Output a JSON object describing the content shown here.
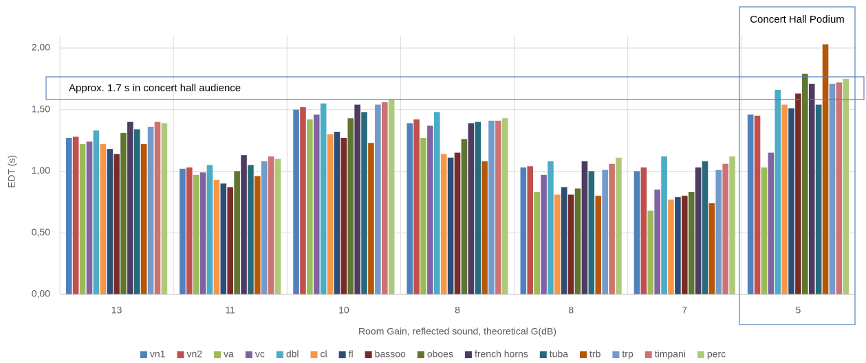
{
  "chart_data": {
    "type": "bar",
    "y_label": "EDT (s)",
    "x_label": "Room Gain, reflected sound, theoretical G(dB)",
    "annotations": [
      "Approx. 1.7 s in concert hall audience",
      "Concert Hall Podium"
    ],
    "categories": [
      "13",
      "11",
      "10",
      "8",
      "8",
      "7",
      "5"
    ],
    "ylim": [
      0,
      2.1
    ],
    "yticks": [
      {
        "value": 0,
        "label": "0,00"
      },
      {
        "value": 0.5,
        "label": "0,50"
      },
      {
        "value": 1,
        "label": "1,00"
      },
      {
        "value": 1.5,
        "label": "1,50"
      },
      {
        "value": 2,
        "label": "2,00"
      }
    ],
    "grid": true,
    "series": [
      {
        "name": "vn1",
        "color": "#4f81bd",
        "values": [
          1.27,
          1.02,
          1.5,
          1.39,
          1.03,
          1.0,
          1.46
        ]
      },
      {
        "name": "vn2",
        "color": "#c0504d",
        "values": [
          1.28,
          1.03,
          1.52,
          1.42,
          1.04,
          1.03,
          1.45
        ]
      },
      {
        "name": "va",
        "color": "#9bbb59",
        "values": [
          1.22,
          0.97,
          1.42,
          1.27,
          0.83,
          0.68,
          1.03
        ]
      },
      {
        "name": "vc",
        "color": "#8064a2",
        "values": [
          1.24,
          0.99,
          1.46,
          1.37,
          0.97,
          0.85,
          1.15
        ]
      },
      {
        "name": "dbl",
        "color": "#4bacc6",
        "values": [
          1.33,
          1.05,
          1.55,
          1.48,
          1.08,
          1.12,
          1.66
        ]
      },
      {
        "name": "cl",
        "color": "#f79646",
        "values": [
          1.22,
          0.93,
          1.3,
          1.14,
          0.81,
          0.77,
          1.54
        ]
      },
      {
        "name": "fl",
        "color": "#2c4d75",
        "values": [
          1.18,
          0.9,
          1.32,
          1.11,
          0.87,
          0.79,
          1.51
        ]
      },
      {
        "name": "bassoo",
        "color": "#772c2a",
        "values": [
          1.14,
          0.87,
          1.27,
          1.15,
          0.81,
          0.8,
          1.63
        ]
      },
      {
        "name": "oboes",
        "color": "#5f7530",
        "values": [
          1.31,
          1.0,
          1.43,
          1.26,
          0.86,
          0.83,
          1.79
        ]
      },
      {
        "name": "french horns",
        "color": "#4d3b62",
        "values": [
          1.4,
          1.13,
          1.54,
          1.39,
          1.08,
          1.03,
          1.71
        ]
      },
      {
        "name": "tuba",
        "color": "#276a7c",
        "values": [
          1.34,
          1.05,
          1.48,
          1.4,
          1.0,
          1.08,
          1.54
        ]
      },
      {
        "name": "trb",
        "color": "#b65708",
        "values": [
          1.22,
          0.96,
          1.23,
          1.08,
          0.8,
          0.74,
          2.03
        ]
      },
      {
        "name": "trp",
        "color": "#729aca",
        "values": [
          1.36,
          1.08,
          1.54,
          1.41,
          1.01,
          1.01,
          1.71
        ]
      },
      {
        "name": "timpani",
        "color": "#cd7371",
        "values": [
          1.4,
          1.12,
          1.56,
          1.41,
          1.06,
          1.06,
          1.72
        ]
      },
      {
        "name": "perc",
        "color": "#afc97a",
        "values": [
          1.39,
          1.1,
          1.58,
          1.43,
          1.11,
          1.12,
          1.75
        ]
      }
    ]
  }
}
